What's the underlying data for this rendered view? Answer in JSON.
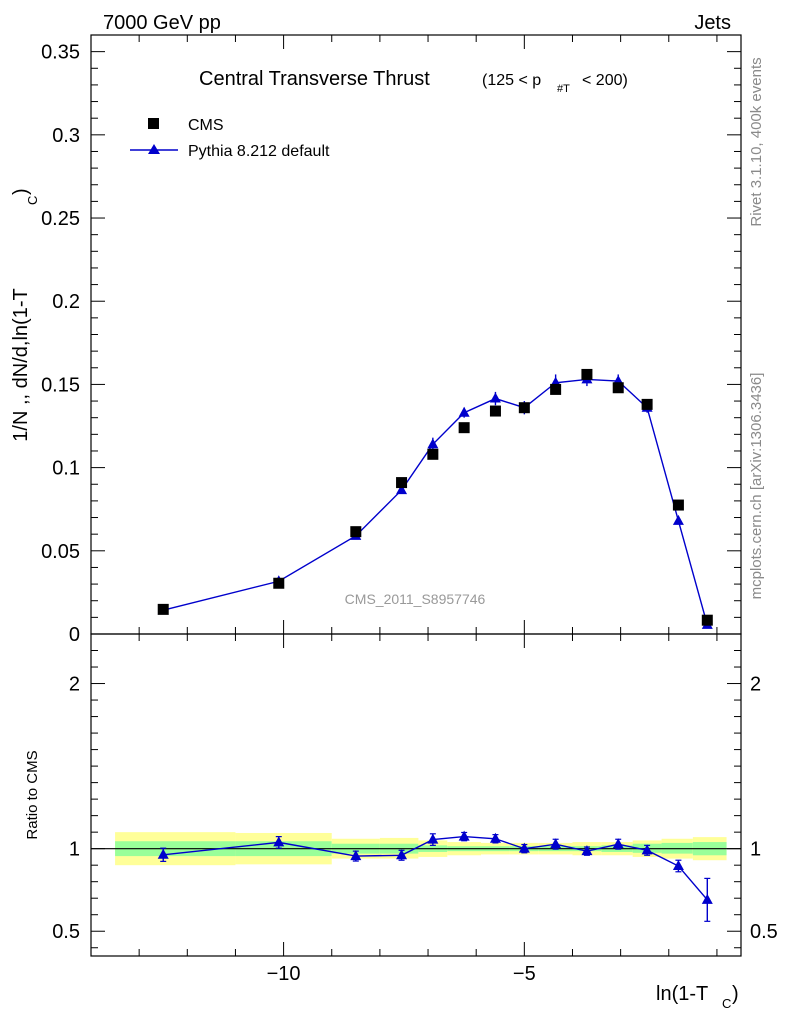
{
  "chart_data": {
    "type": "scatter",
    "header": {
      "left": "7000 GeV pp",
      "right": "Jets"
    },
    "title": "Central Transverse Thrust",
    "title_suffix_left": "(125 < p",
    "title_suffix_sub": "#T",
    "title_suffix_right": "< 200)",
    "ylabel_main": "1/N ,, dN/d,ln(1-T",
    "ylabel_main_sub": "C",
    "ylabel_main_end": ")",
    "ylabel_ratio": "Ratio to CMS",
    "xlabel_main": "ln(1-T",
    "xlabel_sub": "C",
    "xlabel_end": ")",
    "analysis_tag": "CMS_2011_S8957746",
    "side_text_top": "Rivet 3.1.10,  400k events",
    "side_text_bottom": "mcplots.cern.ch [arXiv:1306.3436]",
    "xlim": [
      -14.0,
      -0.5
    ],
    "ylim_main": [
      0,
      0.36
    ],
    "ylim_ratio": [
      0.35,
      2.3
    ],
    "x_ticks": [
      -10,
      -5
    ],
    "x_tick_labels": [
      "−10",
      "−5"
    ],
    "y_ticks_main": [
      0,
      0.05,
      0.1,
      0.15,
      0.2,
      0.25,
      0.3,
      0.35
    ],
    "y_tick_labels_main": [
      "0",
      "0.05",
      "0.1",
      "0.15",
      "0.2",
      "0.25",
      "0.3",
      "0.35"
    ],
    "y_ticks_ratio": [
      0.5,
      1,
      2
    ],
    "y_tick_labels_ratio": [
      "0.5",
      "1",
      "2"
    ],
    "legend": [
      "CMS",
      "Pythia 8.212 default"
    ],
    "series": [
      {
        "name": "CMS",
        "color": "#000000",
        "x": [
          -12.5,
          -10.1,
          -8.5,
          -7.55,
          -6.9,
          -6.25,
          -5.6,
          -5.0,
          -4.35,
          -3.7,
          -3.05,
          -2.45,
          -1.8,
          -1.2
        ],
        "values": [
          0.0148,
          0.0305,
          0.0615,
          0.091,
          0.108,
          0.124,
          0.134,
          0.136,
          0.147,
          0.156,
          0.148,
          0.138,
          0.0775,
          0.0083
        ]
      },
      {
        "name": "Pythia 8.212 default",
        "color": "#0000cc",
        "x": [
          -12.5,
          -10.1,
          -8.5,
          -7.55,
          -6.9,
          -6.25,
          -5.6,
          -5.0,
          -4.35,
          -3.7,
          -3.05,
          -2.45,
          -1.8,
          -1.2
        ],
        "values": [
          0.0143,
          0.0317,
          0.059,
          0.0865,
          0.114,
          0.133,
          0.1415,
          0.136,
          0.151,
          0.153,
          0.152,
          0.136,
          0.068,
          0.0055
        ],
        "errors": [
          0.0005,
          0.0007,
          0.0015,
          0.002,
          0.004,
          0.003,
          0.004,
          0.004,
          0.005,
          0.004,
          0.004,
          0.003,
          0.002,
          0.001
        ],
        "ratio": [
          0.963,
          1.038,
          0.955,
          0.96,
          1.055,
          1.073,
          1.06,
          1.0,
          1.027,
          0.985,
          1.027,
          0.99,
          0.895,
          0.69
        ],
        "ratio_errors": [
          0.04,
          0.035,
          0.03,
          0.03,
          0.035,
          0.025,
          0.025,
          0.025,
          0.03,
          0.025,
          0.03,
          0.03,
          0.035,
          0.13
        ]
      }
    ],
    "ratio_bands": [
      {
        "x": [
          -13.5,
          -11.0
        ],
        "inner": [
          0.955,
          1.045
        ],
        "outer": [
          0.9,
          1.1
        ]
      },
      {
        "x": [
          -11.0,
          -9.0
        ],
        "inner": [
          0.955,
          1.045
        ],
        "outer": [
          0.905,
          1.095
        ]
      },
      {
        "x": [
          -9.0,
          -8.0
        ],
        "inner": [
          0.97,
          1.03
        ],
        "outer": [
          0.94,
          1.06
        ]
      },
      {
        "x": [
          -8.0,
          -7.2
        ],
        "inner": [
          0.97,
          1.03
        ],
        "outer": [
          0.94,
          1.065
        ]
      },
      {
        "x": [
          -7.2,
          -6.6
        ],
        "inner": [
          0.98,
          1.02
        ],
        "outer": [
          0.95,
          1.05
        ]
      },
      {
        "x": [
          -6.6,
          -5.9
        ],
        "inner": [
          0.985,
          1.015
        ],
        "outer": [
          0.96,
          1.04
        ]
      },
      {
        "x": [
          -5.9,
          -5.3
        ],
        "inner": [
          0.985,
          1.015
        ],
        "outer": [
          0.965,
          1.035
        ]
      },
      {
        "x": [
          -5.3,
          -4.7
        ],
        "inner": [
          0.985,
          1.015
        ],
        "outer": [
          0.965,
          1.035
        ]
      },
      {
        "x": [
          -4.7,
          -4.0
        ],
        "inner": [
          0.985,
          1.015
        ],
        "outer": [
          0.965,
          1.035
        ]
      },
      {
        "x": [
          -4.0,
          -3.4
        ],
        "inner": [
          0.985,
          1.015
        ],
        "outer": [
          0.96,
          1.04
        ]
      },
      {
        "x": [
          -3.4,
          -2.75
        ],
        "inner": [
          0.98,
          1.02
        ],
        "outer": [
          0.96,
          1.04
        ]
      },
      {
        "x": [
          -2.75,
          -2.15
        ],
        "inner": [
          0.975,
          1.03
        ],
        "outer": [
          0.95,
          1.05
        ]
      },
      {
        "x": [
          -2.15,
          -1.5
        ],
        "inner": [
          0.97,
          1.035
        ],
        "outer": [
          0.94,
          1.06
        ]
      },
      {
        "x": [
          -1.5,
          -0.8
        ],
        "inner": [
          0.96,
          1.04
        ],
        "outer": [
          0.93,
          1.07
        ]
      }
    ],
    "colors": {
      "band_inner": "#99ff99",
      "band_outer": "#ffff99",
      "mc": "#0000cc",
      "data": "#000000"
    }
  }
}
